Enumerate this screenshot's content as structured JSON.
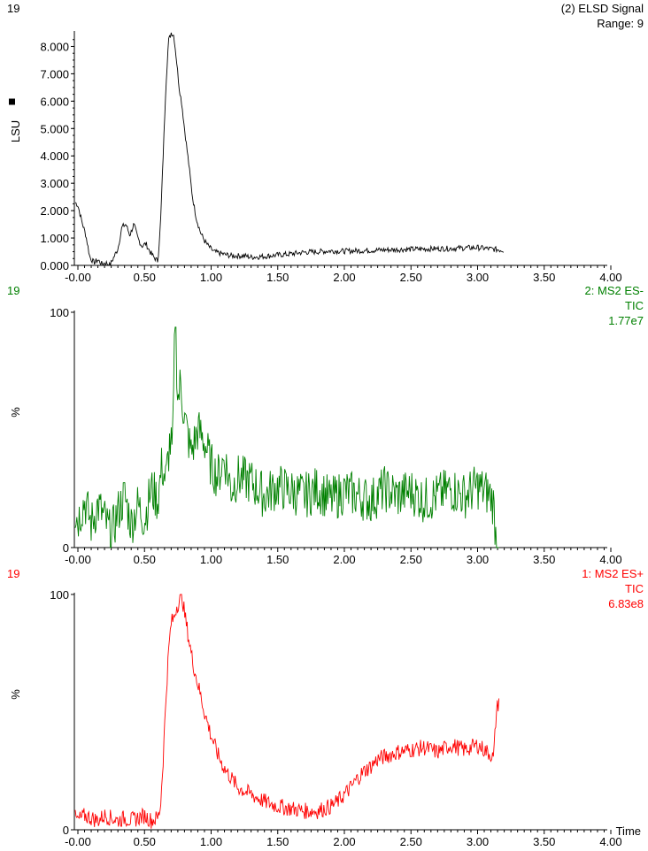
{
  "chart_data": [
    {
      "type": "line",
      "sample_id": "19",
      "title": "(2) ELSD Signal",
      "subtitle": "Range: 9",
      "ylabel": "LSU",
      "color": "#000000",
      "xlim": [
        -0.05,
        4.0
      ],
      "ylim": [
        0,
        8500
      ],
      "yticks": [
        0,
        1000,
        2000,
        3000,
        4000,
        5000,
        6000,
        7000,
        8000
      ],
      "ytick_labels": [
        "0.000",
        "1.000",
        "2.000",
        "3.000",
        "4.000",
        "5.000",
        "6.000",
        "7.000",
        "8.000"
      ],
      "xticks": [
        0,
        0.5,
        1.0,
        1.5,
        2.0,
        2.5,
        3.0,
        3.5,
        4.0
      ],
      "xtick_labels": [
        "-0.00",
        "0.50",
        "1.00",
        "1.50",
        "2.00",
        "2.50",
        "3.00",
        "3.50",
        "4.00"
      ],
      "x": [
        -0.02,
        0.0,
        0.03,
        0.06,
        0.09,
        0.12,
        0.15,
        0.18,
        0.21,
        0.24,
        0.27,
        0.3,
        0.33,
        0.36,
        0.39,
        0.42,
        0.45,
        0.48,
        0.51,
        0.54,
        0.57,
        0.6,
        0.62,
        0.64,
        0.66,
        0.68,
        0.7,
        0.72,
        0.74,
        0.76,
        0.78,
        0.8,
        0.83,
        0.86,
        0.89,
        0.92,
        0.95,
        0.98,
        1.02,
        1.06,
        1.1,
        1.15,
        1.2,
        1.25,
        1.3,
        1.4,
        1.5,
        1.6,
        1.7,
        1.8,
        1.9,
        2.0,
        2.2,
        2.4,
        2.6,
        2.8,
        3.0,
        3.1,
        3.2
      ],
      "values": [
        2300,
        2200,
        1600,
        1100,
        300,
        100,
        200,
        50,
        100,
        0,
        300,
        600,
        1400,
        1500,
        1100,
        1500,
        1000,
        700,
        800,
        500,
        300,
        150,
        1500,
        4000,
        6500,
        8200,
        8500,
        8400,
        7500,
        6500,
        5900,
        5000,
        3800,
        2500,
        1700,
        1200,
        900,
        700,
        500,
        450,
        400,
        350,
        350,
        350,
        300,
        330,
        380,
        420,
        480,
        500,
        530,
        520,
        550,
        580,
        600,
        620,
        650,
        600,
        550
      ]
    },
    {
      "type": "line",
      "sample_id": "19",
      "title": "2: MS2 ES-",
      "subtitle": "TIC",
      "note": "1.77e7",
      "ylabel": "%",
      "color": "#008000",
      "xlim": [
        -0.05,
        4.0
      ],
      "ylim": [
        0,
        100
      ],
      "yticks": [
        0,
        100
      ],
      "ytick_labels": [
        "0",
        "100"
      ],
      "xticks": [
        0,
        0.5,
        1.0,
        1.5,
        2.0,
        2.5,
        3.0,
        3.5,
        4.0
      ],
      "xtick_labels": [
        "-0.00",
        "0.50",
        "1.00",
        "1.50",
        "2.00",
        "2.50",
        "3.00",
        "3.50",
        "4.00"
      ],
      "x": [
        -0.02,
        0.0,
        0.05,
        0.1,
        0.15,
        0.2,
        0.25,
        0.3,
        0.35,
        0.4,
        0.45,
        0.5,
        0.55,
        0.6,
        0.63,
        0.66,
        0.69,
        0.71,
        0.73,
        0.75,
        0.77,
        0.8,
        0.85,
        0.9,
        0.95,
        1.0,
        1.05,
        1.1,
        1.15,
        1.2,
        1.3,
        1.4,
        1.5,
        1.6,
        1.7,
        1.8,
        1.9,
        2.0,
        2.1,
        2.2,
        2.3,
        2.4,
        2.5,
        2.6,
        2.7,
        2.8,
        2.9,
        3.0,
        3.05,
        3.1,
        3.12,
        3.14,
        3.16
      ],
      "values": [
        15,
        12,
        20,
        10,
        18,
        12,
        5,
        15,
        22,
        10,
        18,
        12,
        25,
        20,
        35,
        28,
        45,
        40,
        100,
        62,
        70,
        55,
        40,
        50,
        45,
        35,
        30,
        38,
        25,
        30,
        28,
        22,
        26,
        24,
        22,
        25,
        20,
        24,
        22,
        20,
        25,
        22,
        24,
        20,
        22,
        25,
        22,
        26,
        24,
        22,
        18,
        3,
        3
      ]
    },
    {
      "type": "line",
      "sample_id": "19",
      "title": "1: MS2 ES+",
      "subtitle": "TIC",
      "note": "6.83e8",
      "ylabel": "%",
      "xlabel": "Time",
      "color": "#ff0000",
      "xlim": [
        -0.05,
        4.0
      ],
      "ylim": [
        0,
        100
      ],
      "yticks": [
        0,
        100
      ],
      "ytick_labels": [
        "0",
        "100"
      ],
      "xticks": [
        0,
        0.5,
        1.0,
        1.5,
        2.0,
        2.5,
        3.0,
        3.5,
        4.0
      ],
      "xtick_labels": [
        "-0.00",
        "0.50",
        "1.00",
        "1.50",
        "2.00",
        "2.50",
        "3.00",
        "3.50",
        "4.00"
      ],
      "x": [
        -0.02,
        0.0,
        0.05,
        0.1,
        0.15,
        0.2,
        0.25,
        0.3,
        0.35,
        0.4,
        0.45,
        0.5,
        0.55,
        0.6,
        0.62,
        0.64,
        0.66,
        0.68,
        0.7,
        0.72,
        0.74,
        0.76,
        0.78,
        0.8,
        0.83,
        0.86,
        0.9,
        0.95,
        1.0,
        1.05,
        1.1,
        1.15,
        1.2,
        1.3,
        1.4,
        1.5,
        1.6,
        1.7,
        1.8,
        1.9,
        1.95,
        2.0,
        2.05,
        2.1,
        2.15,
        2.2,
        2.25,
        2.3,
        2.4,
        2.5,
        2.6,
        2.7,
        2.8,
        2.9,
        3.0,
        3.05,
        3.1,
        3.12,
        3.14,
        3.16
      ],
      "values": [
        5,
        4,
        6,
        5,
        4,
        6,
        5,
        4,
        5,
        4,
        5,
        6,
        4,
        5,
        10,
        30,
        55,
        75,
        88,
        90,
        95,
        97,
        100,
        92,
        82,
        72,
        62,
        50,
        40,
        32,
        26,
        22,
        18,
        15,
        12,
        10,
        9,
        8,
        8,
        10,
        12,
        15,
        18,
        22,
        25,
        27,
        30,
        31,
        33,
        34,
        35,
        33,
        36,
        34,
        36,
        34,
        32,
        30,
        50,
        55
      ]
    }
  ]
}
